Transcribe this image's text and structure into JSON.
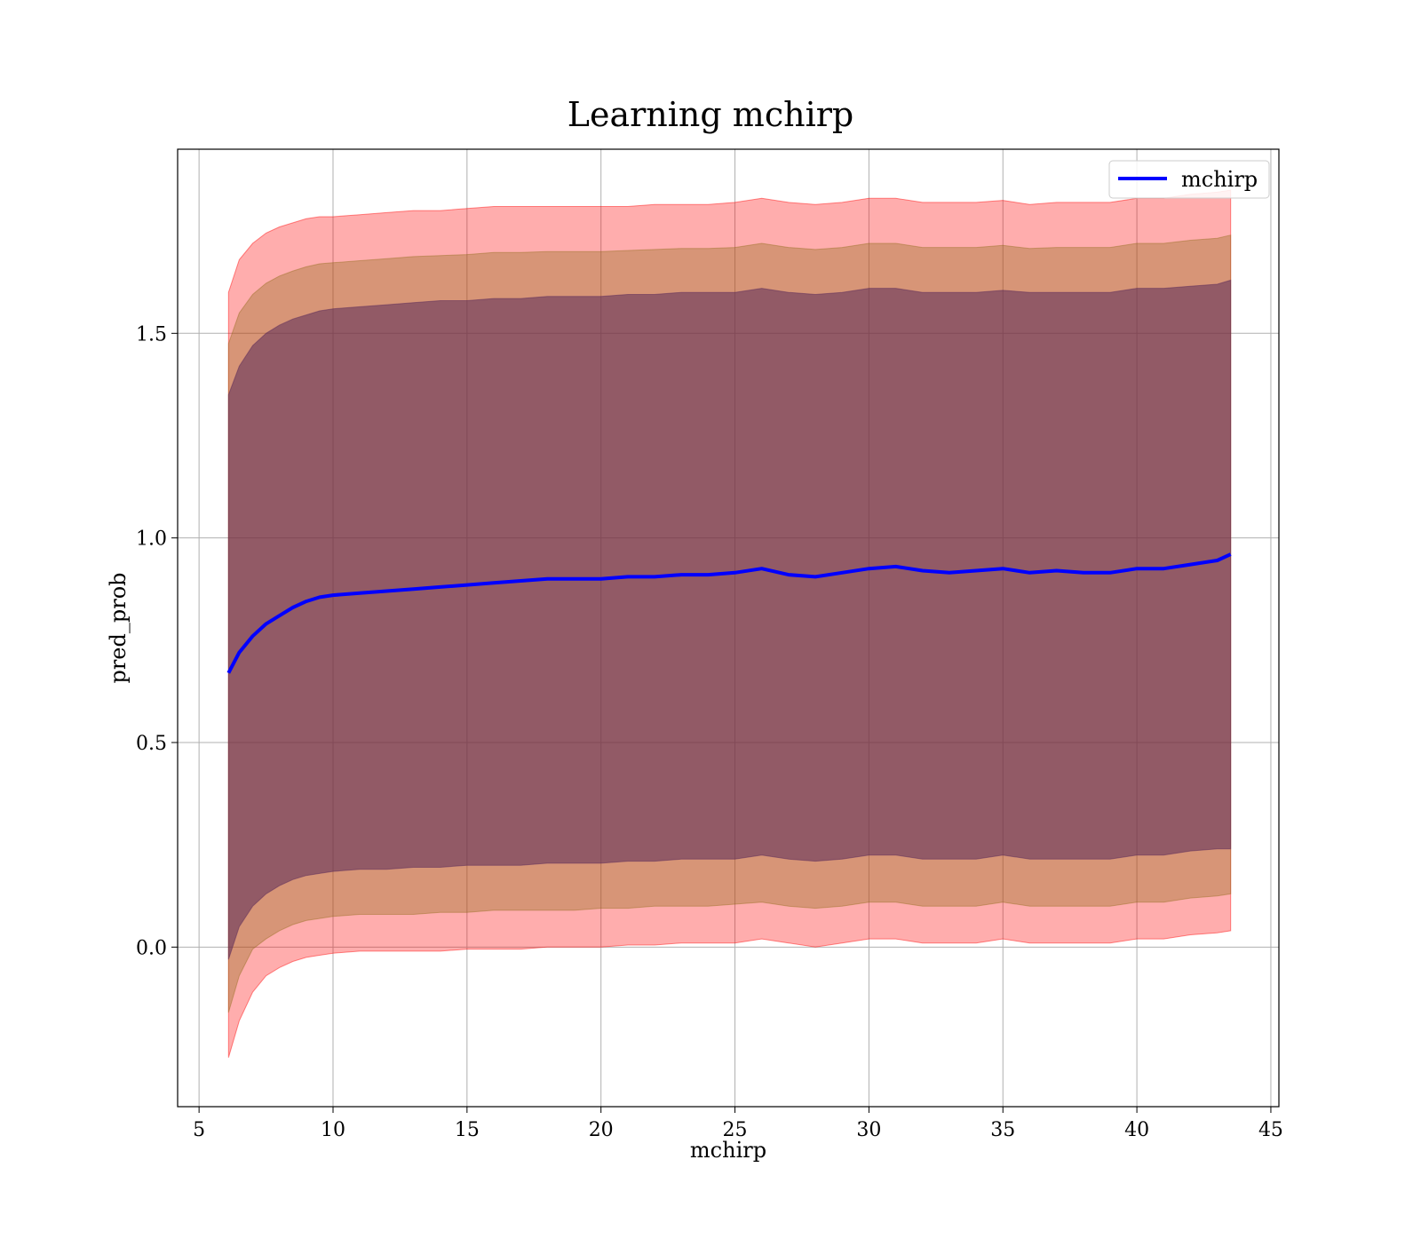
{
  "chart_data": {
    "type": "line",
    "title": "Learning mchirp",
    "xlabel": "mchirp",
    "ylabel": "pred_prob",
    "xlim": [
      4.2,
      45.3
    ],
    "ylim": [
      -0.39,
      1.95
    ],
    "xticks": [
      5,
      10,
      15,
      20,
      25,
      30,
      35,
      40,
      45
    ],
    "xtick_labels": [
      "5",
      "10",
      "15",
      "20",
      "25",
      "30",
      "35",
      "40",
      "45"
    ],
    "yticks": [
      0.0,
      0.5,
      1.0,
      1.5
    ],
    "ytick_labels": [
      "0.0",
      "0.5",
      "1.0",
      "1.5"
    ],
    "grid": true,
    "legend": {
      "position": "top-right",
      "entries": [
        "mchirp"
      ]
    },
    "colors": {
      "line": "#0000ff",
      "band_outer": "#ff0000",
      "band_middle": "#8b6914",
      "band_inner": "#5a2a5a",
      "grid": "#b0b0b0"
    },
    "x": [
      6.1,
      6.5,
      7.0,
      7.5,
      8.0,
      8.5,
      9.0,
      9.5,
      10.0,
      11.0,
      12.0,
      13.0,
      14.0,
      15.0,
      16.0,
      17.0,
      18.0,
      19.0,
      20.0,
      21.0,
      22.0,
      23.0,
      24.0,
      25.0,
      26.0,
      27.0,
      28.0,
      29.0,
      30.0,
      31.0,
      32.0,
      33.0,
      34.0,
      35.0,
      36.0,
      37.0,
      38.0,
      39.0,
      40.0,
      41.0,
      42.0,
      43.0,
      43.5
    ],
    "series": [
      {
        "name": "mchirp",
        "values": [
          0.67,
          0.72,
          0.76,
          0.79,
          0.81,
          0.83,
          0.845,
          0.855,
          0.86,
          0.865,
          0.87,
          0.875,
          0.88,
          0.885,
          0.89,
          0.895,
          0.9,
          0.9,
          0.9,
          0.905,
          0.905,
          0.91,
          0.91,
          0.915,
          0.925,
          0.91,
          0.905,
          0.915,
          0.925,
          0.93,
          0.92,
          0.915,
          0.92,
          0.925,
          0.915,
          0.92,
          0.915,
          0.915,
          0.925,
          0.925,
          0.935,
          0.945,
          0.96
        ]
      }
    ],
    "bands": [
      {
        "lower": [
          -0.27,
          -0.18,
          -0.11,
          -0.07,
          -0.05,
          -0.035,
          -0.025,
          -0.02,
          -0.015,
          -0.01,
          -0.01,
          -0.01,
          -0.01,
          -0.005,
          -0.005,
          -0.005,
          0.0,
          0.0,
          0.0,
          0.005,
          0.005,
          0.01,
          0.01,
          0.01,
          0.02,
          0.01,
          0.0,
          0.01,
          0.02,
          0.02,
          0.01,
          0.01,
          0.01,
          0.02,
          0.01,
          0.01,
          0.01,
          0.01,
          0.02,
          0.02,
          0.03,
          0.035,
          0.04
        ],
        "upper": [
          1.6,
          1.68,
          1.72,
          1.745,
          1.76,
          1.77,
          1.78,
          1.785,
          1.785,
          1.79,
          1.795,
          1.8,
          1.8,
          1.805,
          1.81,
          1.81,
          1.81,
          1.81,
          1.81,
          1.81,
          1.815,
          1.815,
          1.815,
          1.82,
          1.83,
          1.82,
          1.815,
          1.82,
          1.83,
          1.83,
          1.82,
          1.82,
          1.82,
          1.825,
          1.815,
          1.82,
          1.82,
          1.82,
          1.83,
          1.83,
          1.84,
          1.845,
          1.85
        ]
      },
      {
        "lower": [
          -0.16,
          -0.07,
          -0.005,
          0.02,
          0.04,
          0.055,
          0.065,
          0.07,
          0.075,
          0.08,
          0.08,
          0.08,
          0.085,
          0.085,
          0.09,
          0.09,
          0.09,
          0.09,
          0.095,
          0.095,
          0.1,
          0.1,
          0.1,
          0.105,
          0.11,
          0.1,
          0.095,
          0.1,
          0.11,
          0.11,
          0.1,
          0.1,
          0.1,
          0.11,
          0.1,
          0.1,
          0.1,
          0.1,
          0.11,
          0.11,
          0.12,
          0.125,
          0.13
        ]
      },
      {
        "lower": [
          -0.03,
          0.05,
          0.1,
          0.13,
          0.15,
          0.165,
          0.175,
          0.18,
          0.185,
          0.19,
          0.19,
          0.195,
          0.195,
          0.2,
          0.2,
          0.2,
          0.205,
          0.205,
          0.205,
          0.21,
          0.21,
          0.215,
          0.215,
          0.215,
          0.225,
          0.215,
          0.21,
          0.215,
          0.225,
          0.225,
          0.215,
          0.215,
          0.215,
          0.225,
          0.215,
          0.215,
          0.215,
          0.215,
          0.225,
          0.225,
          0.235,
          0.24,
          0.24
        ],
        "upper": [
          1.35,
          1.42,
          1.47,
          1.5,
          1.52,
          1.535,
          1.545,
          1.555,
          1.56,
          1.565,
          1.57,
          1.575,
          1.58,
          1.58,
          1.585,
          1.585,
          1.59,
          1.59,
          1.59,
          1.595,
          1.595,
          1.6,
          1.6,
          1.6,
          1.61,
          1.6,
          1.595,
          1.6,
          1.61,
          1.61,
          1.6,
          1.6,
          1.6,
          1.605,
          1.6,
          1.6,
          1.6,
          1.6,
          1.61,
          1.61,
          1.615,
          1.62,
          1.63
        ]
      }
    ]
  }
}
